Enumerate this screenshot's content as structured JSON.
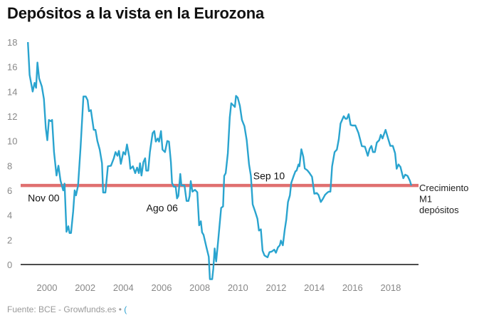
{
  "title": "Depósitos a la vista en la Eurozona",
  "footer": {
    "source": "Fuente: BCE - Growfunds.es •",
    "more_glyph": "("
  },
  "colors": {
    "line": "#2aa4cf",
    "reference": "#e07070",
    "zero": "#111111"
  },
  "chart_data": {
    "type": "line",
    "title": "Depósitos a la vista en la Eurozona",
    "xlabel": "",
    "ylabel": "",
    "xlim": [
      1999,
      2019.1
    ],
    "ylim": [
      -1.2,
      18
    ],
    "grid": false,
    "x_ticks": [
      "2000",
      "2002",
      "2004",
      "2006",
      "2008",
      "2010",
      "2012",
      "2014",
      "2016",
      "2018"
    ],
    "y_ticks": [
      "0",
      "2",
      "4",
      "6",
      "8",
      "10",
      "12",
      "14",
      "16",
      "18"
    ],
    "reference_line": {
      "value": 6.4,
      "label": [
        "Crecimiento",
        "M1",
        "depósitos"
      ]
    },
    "annotations": [
      {
        "text": "Nov 00",
        "x": 1999.0,
        "y": 5.1
      },
      {
        "text": "Ago 06",
        "x": 2005.2,
        "y": 4.3
      },
      {
        "text": "Sep 10",
        "x": 2010.8,
        "y": 6.9
      }
    ],
    "series": [
      {
        "name": "Crecimiento M1 depósitos",
        "points": [
          [
            1999.0,
            18.0
          ],
          [
            1999.09,
            15.35
          ],
          [
            1999.25,
            14.0
          ],
          [
            1999.35,
            14.7
          ],
          [
            1999.43,
            14.3
          ],
          [
            1999.5,
            16.35
          ],
          [
            1999.59,
            15.06
          ],
          [
            1999.73,
            14.4
          ],
          [
            1999.84,
            13.4
          ],
          [
            1999.94,
            11.0
          ],
          [
            2000.02,
            10.06
          ],
          [
            2000.1,
            11.7
          ],
          [
            2000.2,
            11.6
          ],
          [
            2000.27,
            11.7
          ],
          [
            2000.37,
            9.1
          ],
          [
            2000.5,
            7.2
          ],
          [
            2000.6,
            8.0
          ],
          [
            2000.71,
            6.8
          ],
          [
            2000.85,
            6.0
          ],
          [
            2000.92,
            6.55
          ],
          [
            2001.02,
            2.65
          ],
          [
            2001.12,
            3.1
          ],
          [
            2001.18,
            2.55
          ],
          [
            2001.26,
            2.55
          ],
          [
            2001.37,
            4.3
          ],
          [
            2001.45,
            6.0
          ],
          [
            2001.52,
            5.6
          ],
          [
            2001.63,
            6.4
          ],
          [
            2001.76,
            9.5
          ],
          [
            2001.91,
            13.6
          ],
          [
            2002.03,
            13.6
          ],
          [
            2002.13,
            13.3
          ],
          [
            2002.2,
            12.4
          ],
          [
            2002.3,
            12.5
          ],
          [
            2002.45,
            10.9
          ],
          [
            2002.54,
            10.9
          ],
          [
            2002.64,
            10.0
          ],
          [
            2002.76,
            9.3
          ],
          [
            2002.88,
            8.2
          ],
          [
            2002.94,
            5.83
          ],
          [
            2003.06,
            5.83
          ],
          [
            2003.19,
            7.95
          ],
          [
            2003.35,
            8.0
          ],
          [
            2003.5,
            8.6
          ],
          [
            2003.59,
            9.1
          ],
          [
            2003.69,
            8.8
          ],
          [
            2003.77,
            9.2
          ],
          [
            2003.87,
            8.15
          ],
          [
            2004.0,
            9.1
          ],
          [
            2004.1,
            8.9
          ],
          [
            2004.19,
            9.72
          ],
          [
            2004.31,
            8.7
          ],
          [
            2004.37,
            7.75
          ],
          [
            2004.5,
            7.95
          ],
          [
            2004.62,
            7.4
          ],
          [
            2004.72,
            7.85
          ],
          [
            2004.81,
            7.4
          ],
          [
            2004.87,
            8.2
          ],
          [
            2004.95,
            7.2
          ],
          [
            2005.05,
            8.3
          ],
          [
            2005.14,
            8.6
          ],
          [
            2005.2,
            7.6
          ],
          [
            2005.3,
            7.6
          ],
          [
            2005.39,
            9.1
          ],
          [
            2005.53,
            10.63
          ],
          [
            2005.62,
            10.8
          ],
          [
            2005.7,
            9.95
          ],
          [
            2005.8,
            10.2
          ],
          [
            2005.87,
            9.95
          ],
          [
            2005.97,
            10.8
          ],
          [
            2006.05,
            9.3
          ],
          [
            2006.18,
            9.1
          ],
          [
            2006.3,
            10.0
          ],
          [
            2006.39,
            9.95
          ],
          [
            2006.49,
            8.3
          ],
          [
            2006.55,
            6.6
          ],
          [
            2006.64,
            6.3
          ],
          [
            2006.74,
            6.3
          ],
          [
            2006.81,
            5.35
          ],
          [
            2006.88,
            5.55
          ],
          [
            2006.98,
            7.33
          ],
          [
            2007.04,
            6.4
          ],
          [
            2007.2,
            6.4
          ],
          [
            2007.31,
            5.15
          ],
          [
            2007.41,
            5.15
          ],
          [
            2007.47,
            5.55
          ],
          [
            2007.53,
            6.75
          ],
          [
            2007.62,
            5.9
          ],
          [
            2007.75,
            6.05
          ],
          [
            2007.87,
            5.85
          ],
          [
            2007.97,
            3.17
          ],
          [
            2008.06,
            3.5
          ],
          [
            2008.12,
            2.6
          ],
          [
            2008.2,
            2.4
          ],
          [
            2008.35,
            1.4
          ],
          [
            2008.47,
            0.63
          ],
          [
            2008.53,
            -1.19
          ],
          [
            2008.65,
            -1.19
          ],
          [
            2008.71,
            -0.33
          ],
          [
            2008.78,
            1.3
          ],
          [
            2008.86,
            0.25
          ],
          [
            2008.96,
            1.85
          ],
          [
            2009.12,
            4.58
          ],
          [
            2009.22,
            4.7
          ],
          [
            2009.28,
            7.17
          ],
          [
            2009.36,
            7.4
          ],
          [
            2009.47,
            9.0
          ],
          [
            2009.57,
            11.9
          ],
          [
            2009.65,
            13.05
          ],
          [
            2009.78,
            12.85
          ],
          [
            2009.84,
            12.75
          ],
          [
            2009.9,
            13.65
          ],
          [
            2009.99,
            13.5
          ],
          [
            2010.1,
            12.85
          ],
          [
            2010.21,
            11.7
          ],
          [
            2010.34,
            11.2
          ],
          [
            2010.46,
            10.07
          ],
          [
            2010.58,
            8.1
          ],
          [
            2010.68,
            7.17
          ],
          [
            2010.77,
            4.87
          ],
          [
            2010.9,
            4.3
          ],
          [
            2011.02,
            3.7
          ],
          [
            2011.1,
            2.75
          ],
          [
            2011.2,
            2.85
          ],
          [
            2011.29,
            1.12
          ],
          [
            2011.39,
            0.73
          ],
          [
            2011.55,
            0.58
          ],
          [
            2011.65,
            1.0
          ],
          [
            2011.77,
            1.05
          ],
          [
            2011.9,
            1.2
          ],
          [
            2011.99,
            0.95
          ],
          [
            2012.09,
            1.38
          ],
          [
            2012.19,
            1.56
          ],
          [
            2012.25,
            1.94
          ],
          [
            2012.35,
            1.56
          ],
          [
            2012.45,
            2.8
          ],
          [
            2012.53,
            3.63
          ],
          [
            2012.62,
            5.06
          ],
          [
            2012.72,
            5.6
          ],
          [
            2012.79,
            6.6
          ],
          [
            2012.92,
            7.17
          ],
          [
            2013.01,
            7.55
          ],
          [
            2013.07,
            7.6
          ],
          [
            2013.17,
            8.1
          ],
          [
            2013.22,
            7.95
          ],
          [
            2013.32,
            9.33
          ],
          [
            2013.42,
            8.73
          ],
          [
            2013.5,
            7.77
          ],
          [
            2013.63,
            7.63
          ],
          [
            2013.75,
            7.4
          ],
          [
            2013.88,
            7.1
          ],
          [
            2014.0,
            5.73
          ],
          [
            2014.13,
            5.79
          ],
          [
            2014.22,
            5.63
          ],
          [
            2014.34,
            5.06
          ],
          [
            2014.44,
            5.29
          ],
          [
            2014.56,
            5.63
          ],
          [
            2014.66,
            5.79
          ],
          [
            2014.75,
            5.9
          ],
          [
            2014.84,
            5.9
          ],
          [
            2014.93,
            7.95
          ],
          [
            2015.06,
            9.1
          ],
          [
            2015.18,
            9.3
          ],
          [
            2015.28,
            10.15
          ],
          [
            2015.37,
            11.4
          ],
          [
            2015.54,
            12.0
          ],
          [
            2015.63,
            11.8
          ],
          [
            2015.71,
            11.8
          ],
          [
            2015.8,
            12.17
          ],
          [
            2015.9,
            11.3
          ],
          [
            2015.99,
            11.25
          ],
          [
            2016.15,
            11.25
          ],
          [
            2016.31,
            10.65
          ],
          [
            2016.49,
            9.58
          ],
          [
            2016.65,
            9.54
          ],
          [
            2016.8,
            8.8
          ],
          [
            2016.9,
            9.37
          ],
          [
            2016.99,
            9.6
          ],
          [
            2017.07,
            9.1
          ],
          [
            2017.17,
            9.1
          ],
          [
            2017.27,
            9.87
          ],
          [
            2017.4,
            10.07
          ],
          [
            2017.48,
            10.5
          ],
          [
            2017.57,
            10.2
          ],
          [
            2017.73,
            10.9
          ],
          [
            2017.86,
            10.2
          ],
          [
            2017.98,
            9.6
          ],
          [
            2018.11,
            9.6
          ],
          [
            2018.23,
            9.0
          ],
          [
            2018.31,
            7.75
          ],
          [
            2018.41,
            8.1
          ],
          [
            2018.51,
            7.9
          ],
          [
            2018.66,
            6.98
          ],
          [
            2018.76,
            7.27
          ],
          [
            2018.88,
            7.17
          ],
          [
            2019.0,
            6.79
          ],
          [
            2019.08,
            6.4
          ]
        ]
      }
    ]
  }
}
